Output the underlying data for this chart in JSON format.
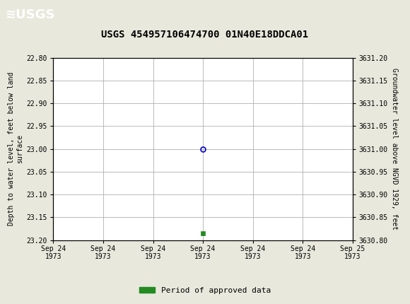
{
  "title": "USGS 454957106474700 01N40E18DDCA01",
  "ylabel_left": "Depth to water level, feet below land\nsurface",
  "ylabel_right": "Groundwater level above NGVD 1929, feet",
  "ylim_left_top": 22.8,
  "ylim_left_bottom": 23.2,
  "ylim_right_top": 3631.2,
  "ylim_right_bottom": 3630.8,
  "yticks_left": [
    22.8,
    22.85,
    22.9,
    22.95,
    23.0,
    23.05,
    23.1,
    23.15,
    23.2
  ],
  "yticks_right": [
    3631.2,
    3631.15,
    3631.1,
    3631.05,
    3631.0,
    3630.95,
    3630.9,
    3630.85,
    3630.8
  ],
  "xlim": [
    0,
    6
  ],
  "xtick_positions": [
    0,
    1,
    2,
    3,
    4,
    5,
    6
  ],
  "xtick_labels": [
    "Sep 24\n1973",
    "Sep 24\n1973",
    "Sep 24\n1973",
    "Sep 24\n1973",
    "Sep 24\n1973",
    "Sep 24\n1973",
    "Sep 25\n1973"
  ],
  "point_x": 3,
  "point_y": 23.0,
  "point_color": "#0000cc",
  "green_marker_x": 3,
  "green_marker_y": 23.185,
  "green_color": "#228B22",
  "header_color": "#1a6b3a",
  "background_color": "#e8e8dc",
  "plot_bg": "#ffffff",
  "grid_color": "#b0b0b0",
  "legend_label": "Period of approved data",
  "font_family": "monospace",
  "title_fontsize": 10,
  "tick_fontsize": 7,
  "label_fontsize": 7
}
